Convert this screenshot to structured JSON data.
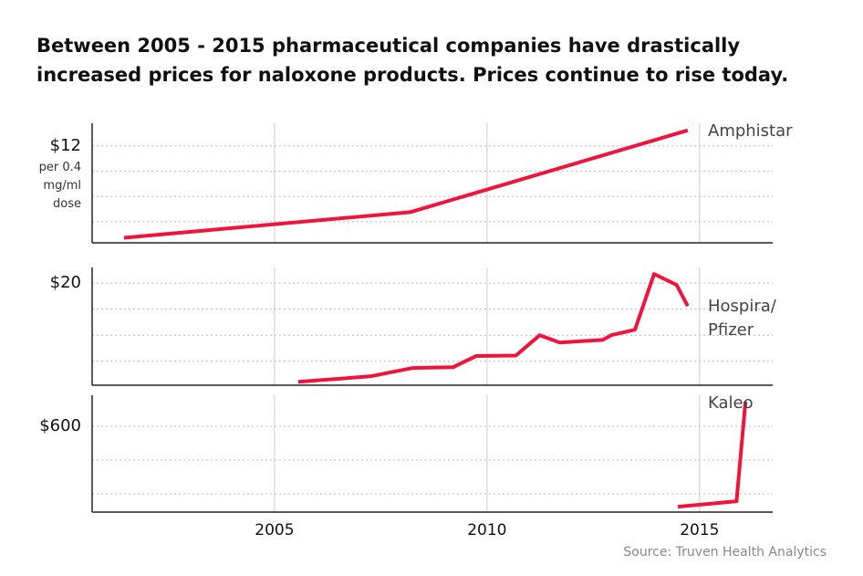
{
  "title": "Between 2005 - 2015 pharmaceutical companies have drastically increased prices for naloxone products. Prices continue to rise today.",
  "source": "Source: Truven Health Analytics",
  "chart_data": [
    {
      "type": "line",
      "unit_label": "per 0.4 mg/ml dose",
      "xlim": [
        2000.71,
        2016.72
      ],
      "xticks": [
        2005,
        2010,
        2015
      ],
      "ylim": [
        0.5,
        14.7
      ],
      "yticks": [
        {
          "value": 3,
          "label": null
        },
        {
          "value": 6,
          "label": null
        },
        {
          "value": 9,
          "label": null
        },
        {
          "value": 12,
          "label": "$12"
        }
      ],
      "series": [
        {
          "name": "Amphistar",
          "color": "#f0143c",
          "x": [
            2001.46,
            2008.2,
            2014.72
          ],
          "values": [
            1.1,
            4.15,
            13.85
          ]
        }
      ]
    },
    {
      "type": "line",
      "xlim": [
        2000.71,
        2016.72
      ],
      "xticks": [
        2005,
        2010,
        2015
      ],
      "ylim": [
        0.4,
        23
      ],
      "yticks": [
        {
          "value": 5,
          "label": null
        },
        {
          "value": 10,
          "label": null
        },
        {
          "value": 15,
          "label": null
        },
        {
          "value": 20,
          "label": "$20"
        }
      ],
      "series": [
        {
          "name": "Hospira/ Pfizer",
          "color": "#f0143c",
          "x": [
            2005.56,
            2007.25,
            2008.24,
            2009.2,
            2009.74,
            2010.68,
            2011.24,
            2011.71,
            2012.72,
            2012.92,
            2013.48,
            2013.93,
            2014.46,
            2014.72
          ],
          "values": [
            1.05,
            2.1,
            3.7,
            3.85,
            6.0,
            6.1,
            10.0,
            8.6,
            9.1,
            10.0,
            11.05,
            21.75,
            19.65,
            15.6
          ]
        }
      ]
    },
    {
      "type": "line",
      "xlim": [
        2000.71,
        2016.72
      ],
      "xticks": [
        2005,
        2010,
        2015
      ],
      "ylim": [
        92,
        784
      ],
      "yticks": [
        {
          "value": 200,
          "label": null
        },
        {
          "value": 400,
          "label": null
        },
        {
          "value": 600,
          "label": "$600"
        }
      ],
      "series": [
        {
          "name": "Kaleo",
          "color": "#f0143c",
          "x": [
            2014.49,
            2015.87,
            2016.08
          ],
          "values": [
            124,
            156,
            746
          ]
        }
      ]
    }
  ]
}
